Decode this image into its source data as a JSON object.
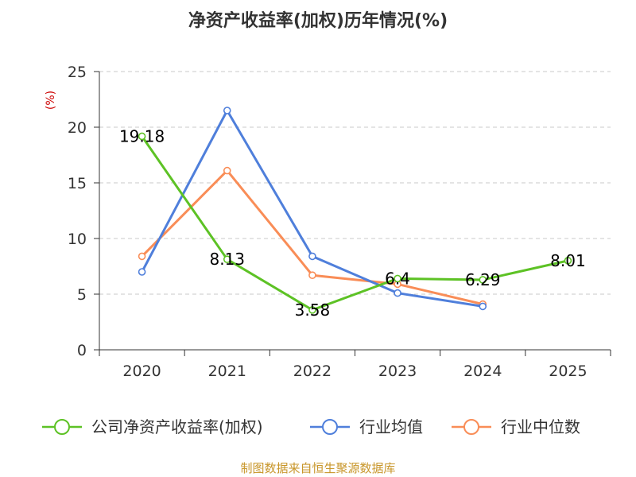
{
  "chart_data": {
    "type": "line",
    "title": "净资产收益率(加权)历年情况(%)",
    "ylabel": "(%)",
    "categories": [
      "2020",
      "2021",
      "2022",
      "2023",
      "2024",
      "2025"
    ],
    "ylim": [
      0,
      25
    ],
    "yticks": [
      0,
      5,
      10,
      15,
      20,
      25
    ],
    "grid": true,
    "legend_position": "bottom",
    "series": [
      {
        "name": "公司净资产收益率(加权)",
        "color": "#5dc225",
        "values": [
          19.18,
          8.13,
          3.58,
          6.4,
          6.29,
          8.01
        ],
        "labels": [
          "19.18",
          "8.13",
          "3.58",
          "6.4",
          "6.29",
          "8.01"
        ]
      },
      {
        "name": "行业均值",
        "color": "#4f7fdb",
        "values": [
          7.0,
          21.5,
          8.4,
          5.1,
          3.9,
          null
        ]
      },
      {
        "name": "行业中位数",
        "color": "#f98d57",
        "values": [
          8.4,
          16.1,
          6.7,
          5.9,
          4.1,
          null
        ]
      }
    ]
  },
  "source": "制图数据来自恒生聚源数据库"
}
